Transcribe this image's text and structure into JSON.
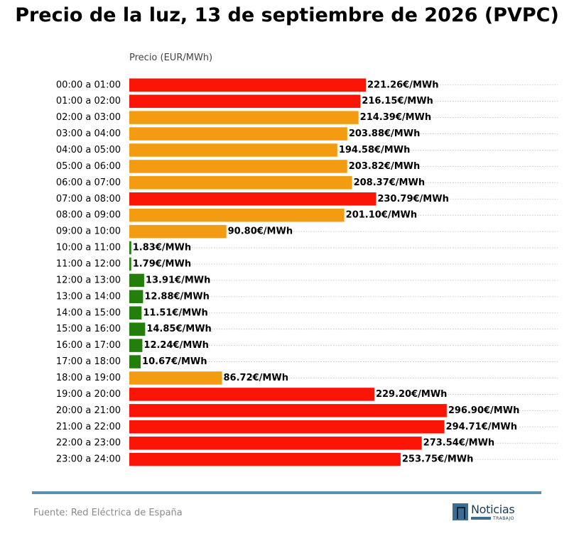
{
  "chart_data": {
    "type": "bar",
    "orientation": "horizontal",
    "title": "Precio de la luz, 13 de septiembre de 2026 (PVPC)",
    "xlabel": "",
    "ylabel": "Precio (EUR/MWh)",
    "value_suffix": "€/MWh",
    "xlim": [
      0,
      320
    ],
    "grid": "dotted horizontal",
    "categories": [
      "00:00 a 01:00",
      "01:00 a 02:00",
      "02:00 a 03:00",
      "03:00 a 04:00",
      "04:00 a 05:00",
      "05:00 a 06:00",
      "06:00 a 07:00",
      "07:00 a 08:00",
      "08:00 a 09:00",
      "09:00 a 10:00",
      "10:00 a 11:00",
      "11:00 a 12:00",
      "12:00 a 13:00",
      "13:00 a 14:00",
      "14:00 a 15:00",
      "15:00 a 16:00",
      "16:00 a 17:00",
      "17:00 a 18:00",
      "18:00 a 19:00",
      "19:00 a 20:00",
      "20:00 a 21:00",
      "21:00 a 22:00",
      "22:00 a 23:00",
      "23:00 a 24:00"
    ],
    "values": [
      221.26,
      216.15,
      214.39,
      203.88,
      194.58,
      203.82,
      208.37,
      230.79,
      201.1,
      90.8,
      1.83,
      1.79,
      13.91,
      12.88,
      11.51,
      14.85,
      12.24,
      10.67,
      86.72,
      229.2,
      296.9,
      294.71,
      273.54,
      253.75
    ],
    "value_labels": [
      "221.26€/MWh",
      "216.15€/MWh",
      "214.39€/MWh",
      "203.88€/MWh",
      "194.58€/MWh",
      "203.82€/MWh",
      "208.37€/MWh",
      "230.79€/MWh",
      "201.10€/MWh",
      "90.80€/MWh",
      "1.83€/MWh",
      "1.79€/MWh",
      "13.91€/MWh",
      "12.88€/MWh",
      "11.51€/MWh",
      "14.85€/MWh",
      "12.24€/MWh",
      "10.67€/MWh",
      "86.72€/MWh",
      "229.20€/MWh",
      "296.90€/MWh",
      "294.71€/MWh",
      "273.54€/MWh",
      "253.75€/MWh"
    ],
    "bar_colors": [
      "#fa1405",
      "#fa1405",
      "#f39c12",
      "#f39c12",
      "#f39c12",
      "#f39c12",
      "#f39c12",
      "#fa1405",
      "#f39c12",
      "#f39c12",
      "#237e0c",
      "#237e0c",
      "#237e0c",
      "#237e0c",
      "#237e0c",
      "#237e0c",
      "#237e0c",
      "#237e0c",
      "#f39c12",
      "#fa1405",
      "#fa1405",
      "#fa1405",
      "#fa1405",
      "#fa1405"
    ]
  },
  "footer": {
    "source": "Fuente: Red Eléctrica de España",
    "logo_text": "Noticias",
    "logo_sub": "TRABAJO"
  },
  "colors": {
    "rule": "#5b8fae",
    "grid": "#bbbbbb"
  }
}
